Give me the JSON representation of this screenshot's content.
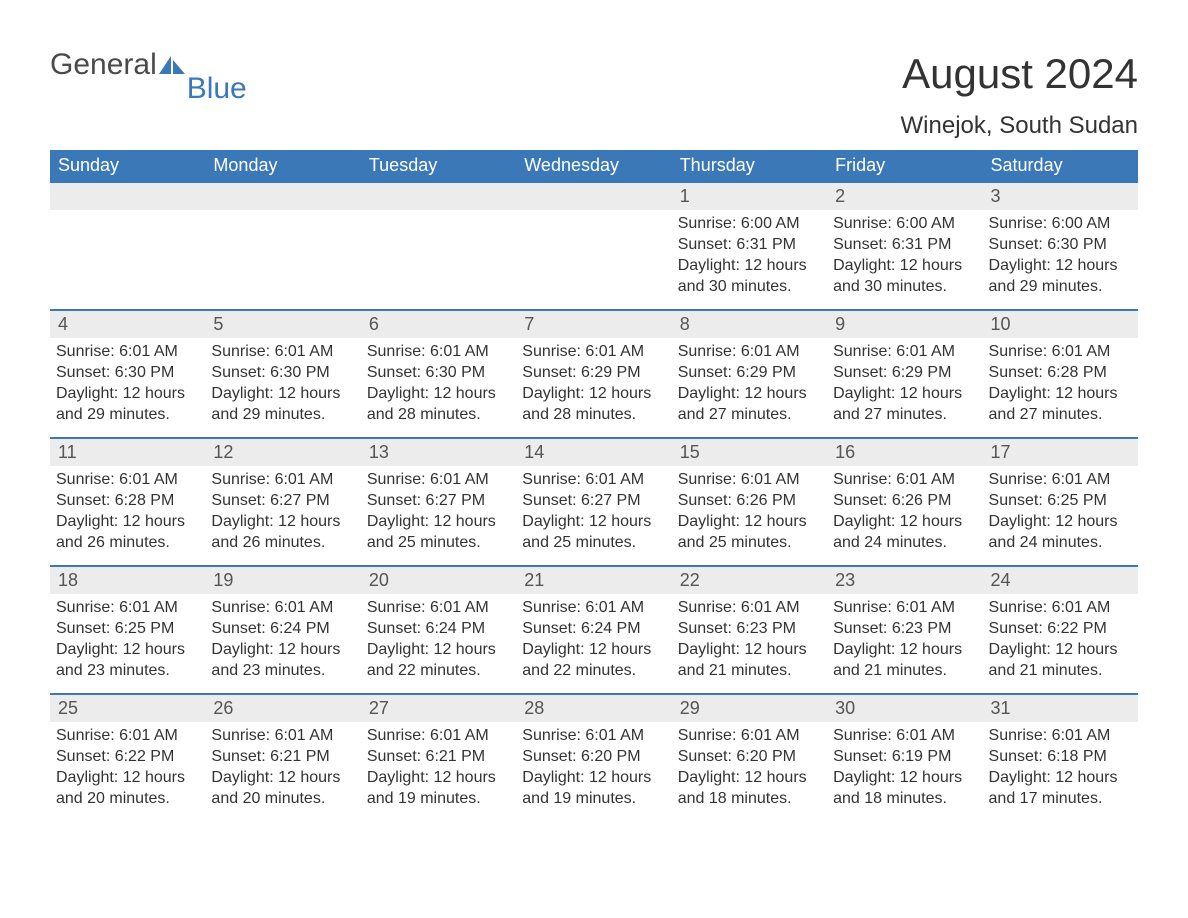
{
  "logo": {
    "general": "General",
    "blue": "Blue"
  },
  "title": "August 2024",
  "location": "Winejok, South Sudan",
  "colors": {
    "header_bg": "#3b78b8",
    "header_text": "#ffffff",
    "day_number_bg": "#ececec",
    "text": "#333333",
    "border": "#3b78b8"
  },
  "weekdays": [
    "Sunday",
    "Monday",
    "Tuesday",
    "Wednesday",
    "Thursday",
    "Friday",
    "Saturday"
  ],
  "weeks": [
    [
      {
        "n": "",
        "lines": [
          "",
          "",
          "",
          ""
        ]
      },
      {
        "n": "",
        "lines": [
          "",
          "",
          "",
          ""
        ]
      },
      {
        "n": "",
        "lines": [
          "",
          "",
          "",
          ""
        ]
      },
      {
        "n": "",
        "lines": [
          "",
          "",
          "",
          ""
        ]
      },
      {
        "n": "1",
        "lines": [
          "Sunrise: 6:00 AM",
          "Sunset: 6:31 PM",
          "Daylight: 12 hours",
          "and 30 minutes."
        ]
      },
      {
        "n": "2",
        "lines": [
          "Sunrise: 6:00 AM",
          "Sunset: 6:31 PM",
          "Daylight: 12 hours",
          "and 30 minutes."
        ]
      },
      {
        "n": "3",
        "lines": [
          "Sunrise: 6:00 AM",
          "Sunset: 6:30 PM",
          "Daylight: 12 hours",
          "and 29 minutes."
        ]
      }
    ],
    [
      {
        "n": "4",
        "lines": [
          "Sunrise: 6:01 AM",
          "Sunset: 6:30 PM",
          "Daylight: 12 hours",
          "and 29 minutes."
        ]
      },
      {
        "n": "5",
        "lines": [
          "Sunrise: 6:01 AM",
          "Sunset: 6:30 PM",
          "Daylight: 12 hours",
          "and 29 minutes."
        ]
      },
      {
        "n": "6",
        "lines": [
          "Sunrise: 6:01 AM",
          "Sunset: 6:30 PM",
          "Daylight: 12 hours",
          "and 28 minutes."
        ]
      },
      {
        "n": "7",
        "lines": [
          "Sunrise: 6:01 AM",
          "Sunset: 6:29 PM",
          "Daylight: 12 hours",
          "and 28 minutes."
        ]
      },
      {
        "n": "8",
        "lines": [
          "Sunrise: 6:01 AM",
          "Sunset: 6:29 PM",
          "Daylight: 12 hours",
          "and 27 minutes."
        ]
      },
      {
        "n": "9",
        "lines": [
          "Sunrise: 6:01 AM",
          "Sunset: 6:29 PM",
          "Daylight: 12 hours",
          "and 27 minutes."
        ]
      },
      {
        "n": "10",
        "lines": [
          "Sunrise: 6:01 AM",
          "Sunset: 6:28 PM",
          "Daylight: 12 hours",
          "and 27 minutes."
        ]
      }
    ],
    [
      {
        "n": "11",
        "lines": [
          "Sunrise: 6:01 AM",
          "Sunset: 6:28 PM",
          "Daylight: 12 hours",
          "and 26 minutes."
        ]
      },
      {
        "n": "12",
        "lines": [
          "Sunrise: 6:01 AM",
          "Sunset: 6:27 PM",
          "Daylight: 12 hours",
          "and 26 minutes."
        ]
      },
      {
        "n": "13",
        "lines": [
          "Sunrise: 6:01 AM",
          "Sunset: 6:27 PM",
          "Daylight: 12 hours",
          "and 25 minutes."
        ]
      },
      {
        "n": "14",
        "lines": [
          "Sunrise: 6:01 AM",
          "Sunset: 6:27 PM",
          "Daylight: 12 hours",
          "and 25 minutes."
        ]
      },
      {
        "n": "15",
        "lines": [
          "Sunrise: 6:01 AM",
          "Sunset: 6:26 PM",
          "Daylight: 12 hours",
          "and 25 minutes."
        ]
      },
      {
        "n": "16",
        "lines": [
          "Sunrise: 6:01 AM",
          "Sunset: 6:26 PM",
          "Daylight: 12 hours",
          "and 24 minutes."
        ]
      },
      {
        "n": "17",
        "lines": [
          "Sunrise: 6:01 AM",
          "Sunset: 6:25 PM",
          "Daylight: 12 hours",
          "and 24 minutes."
        ]
      }
    ],
    [
      {
        "n": "18",
        "lines": [
          "Sunrise: 6:01 AM",
          "Sunset: 6:25 PM",
          "Daylight: 12 hours",
          "and 23 minutes."
        ]
      },
      {
        "n": "19",
        "lines": [
          "Sunrise: 6:01 AM",
          "Sunset: 6:24 PM",
          "Daylight: 12 hours",
          "and 23 minutes."
        ]
      },
      {
        "n": "20",
        "lines": [
          "Sunrise: 6:01 AM",
          "Sunset: 6:24 PM",
          "Daylight: 12 hours",
          "and 22 minutes."
        ]
      },
      {
        "n": "21",
        "lines": [
          "Sunrise: 6:01 AM",
          "Sunset: 6:24 PM",
          "Daylight: 12 hours",
          "and 22 minutes."
        ]
      },
      {
        "n": "22",
        "lines": [
          "Sunrise: 6:01 AM",
          "Sunset: 6:23 PM",
          "Daylight: 12 hours",
          "and 21 minutes."
        ]
      },
      {
        "n": "23",
        "lines": [
          "Sunrise: 6:01 AM",
          "Sunset: 6:23 PM",
          "Daylight: 12 hours",
          "and 21 minutes."
        ]
      },
      {
        "n": "24",
        "lines": [
          "Sunrise: 6:01 AM",
          "Sunset: 6:22 PM",
          "Daylight: 12 hours",
          "and 21 minutes."
        ]
      }
    ],
    [
      {
        "n": "25",
        "lines": [
          "Sunrise: 6:01 AM",
          "Sunset: 6:22 PM",
          "Daylight: 12 hours",
          "and 20 minutes."
        ]
      },
      {
        "n": "26",
        "lines": [
          "Sunrise: 6:01 AM",
          "Sunset: 6:21 PM",
          "Daylight: 12 hours",
          "and 20 minutes."
        ]
      },
      {
        "n": "27",
        "lines": [
          "Sunrise: 6:01 AM",
          "Sunset: 6:21 PM",
          "Daylight: 12 hours",
          "and 19 minutes."
        ]
      },
      {
        "n": "28",
        "lines": [
          "Sunrise: 6:01 AM",
          "Sunset: 6:20 PM",
          "Daylight: 12 hours",
          "and 19 minutes."
        ]
      },
      {
        "n": "29",
        "lines": [
          "Sunrise: 6:01 AM",
          "Sunset: 6:20 PM",
          "Daylight: 12 hours",
          "and 18 minutes."
        ]
      },
      {
        "n": "30",
        "lines": [
          "Sunrise: 6:01 AM",
          "Sunset: 6:19 PM",
          "Daylight: 12 hours",
          "and 18 minutes."
        ]
      },
      {
        "n": "31",
        "lines": [
          "Sunrise: 6:01 AM",
          "Sunset: 6:18 PM",
          "Daylight: 12 hours",
          "and 17 minutes."
        ]
      }
    ]
  ]
}
